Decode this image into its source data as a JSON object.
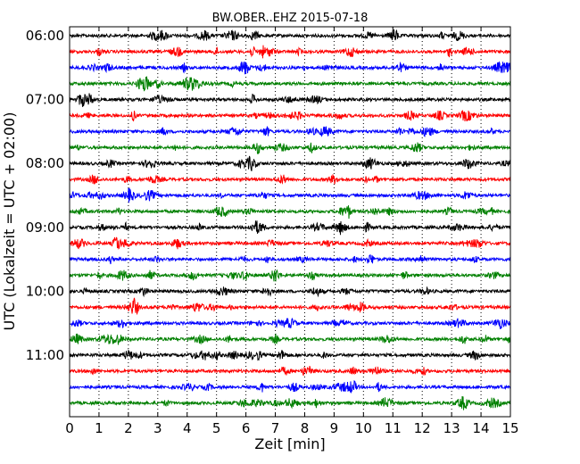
{
  "chart_data": {
    "type": "line",
    "title": "BW.OBER..EHZ 2015-07-18",
    "xlabel": "Zeit  [min]",
    "ylabel": "UTC (Lokalzeit = UTC + 02:00)",
    "xlim": [
      0,
      15
    ],
    "x_ticks": [
      "0",
      "1",
      "2",
      "3",
      "4",
      "5",
      "6",
      "7",
      "8",
      "9",
      "10",
      "11",
      "12",
      "13",
      "14",
      "15"
    ],
    "y_ticks": [
      "06:00",
      "07:00",
      "08:00",
      "09:00",
      "10:00",
      "11:00"
    ],
    "grid": "vertical dotted",
    "trace_start_times": [
      "06:00",
      "06:15",
      "06:30",
      "06:45",
      "07:00",
      "07:15",
      "07:30",
      "07:45",
      "08:00",
      "08:15",
      "08:30",
      "08:45",
      "09:00",
      "09:15",
      "09:30",
      "09:45",
      "10:00",
      "10:15",
      "10:30",
      "10:45",
      "11:00",
      "11:15",
      "11:30",
      "11:45"
    ],
    "trace_colors": [
      "#000000",
      "#ff0000",
      "#0000ff",
      "#008000"
    ]
  }
}
